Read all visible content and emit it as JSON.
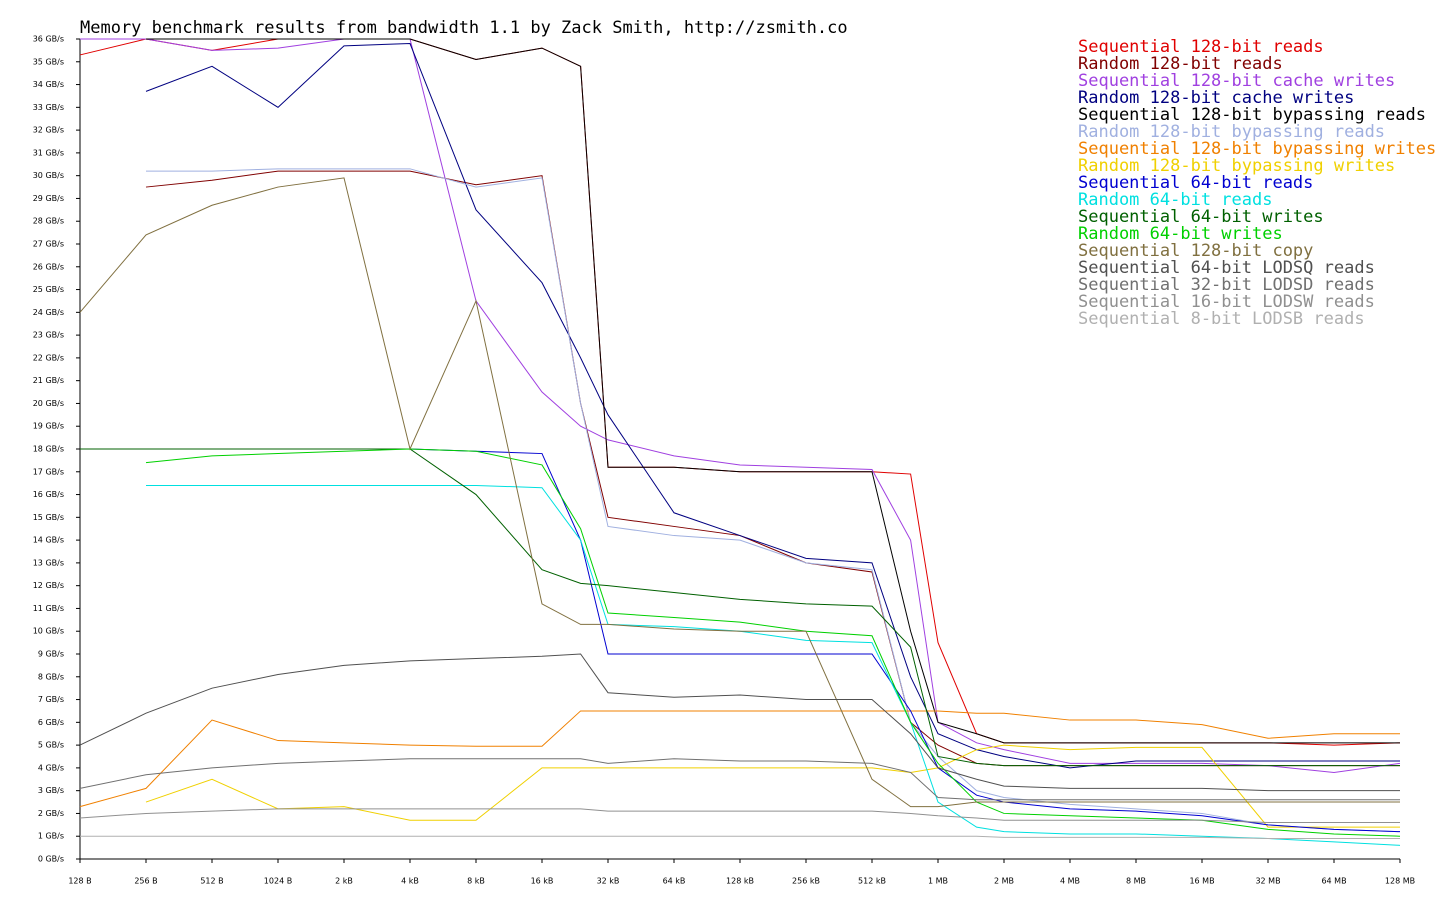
{
  "chart_data": {
    "type": "line",
    "title": "Memory benchmark results from bandwidth 1.1 by Zack Smith, http://zsmith.co",
    "xscale": "log",
    "x": [
      128,
      256,
      512,
      1024,
      2048,
      4096,
      8192,
      16384,
      24576,
      32768,
      65536,
      131072,
      262144,
      524288,
      786432,
      1048576,
      1572864,
      2097152,
      4194304,
      8388608,
      16777216,
      33554432,
      67108864,
      134217728
    ],
    "xlim": [
      128,
      134217728
    ],
    "xticks": [
      {
        "value": 128,
        "label": "128 B"
      },
      {
        "value": 256,
        "label": "256 B"
      },
      {
        "value": 512,
        "label": "512 B"
      },
      {
        "value": 1024,
        "label": "1024 B"
      },
      {
        "value": 2048,
        "label": "2 kB"
      },
      {
        "value": 4096,
        "label": "4 kB"
      },
      {
        "value": 8192,
        "label": "8 kB"
      },
      {
        "value": 16384,
        "label": "16 kB"
      },
      {
        "value": 32768,
        "label": "32 kB"
      },
      {
        "value": 65536,
        "label": "64 kB"
      },
      {
        "value": 131072,
        "label": "128 kB"
      },
      {
        "value": 262144,
        "label": "256 kB"
      },
      {
        "value": 524288,
        "label": "512 kB"
      },
      {
        "value": 1048576,
        "label": "1 MB"
      },
      {
        "value": 2097152,
        "label": "2 MB"
      },
      {
        "value": 4194304,
        "label": "4 MB"
      },
      {
        "value": 8388608,
        "label": "8 MB"
      },
      {
        "value": 16777216,
        "label": "16 MB"
      },
      {
        "value": 33554432,
        "label": "32 MB"
      },
      {
        "value": 67108864,
        "label": "64 MB"
      },
      {
        "value": 134217728,
        "label": "128 MB"
      }
    ],
    "ylim": [
      0,
      36
    ],
    "yticks": [
      {
        "value": 0,
        "label": "0 GB/s"
      },
      {
        "value": 1,
        "label": "1 GB/s"
      },
      {
        "value": 2,
        "label": "2 GB/s"
      },
      {
        "value": 3,
        "label": "3 GB/s"
      },
      {
        "value": 4,
        "label": "4 GB/s"
      },
      {
        "value": 5,
        "label": "5 GB/s"
      },
      {
        "value": 6,
        "label": "6 GB/s"
      },
      {
        "value": 7,
        "label": "7 GB/s"
      },
      {
        "value": 8,
        "label": "8 GB/s"
      },
      {
        "value": 9,
        "label": "9 GB/s"
      },
      {
        "value": 10,
        "label": "10 GB/s"
      },
      {
        "value": 11,
        "label": "11 GB/s"
      },
      {
        "value": 12,
        "label": "12 GB/s"
      },
      {
        "value": 13,
        "label": "13 GB/s"
      },
      {
        "value": 14,
        "label": "14 GB/s"
      },
      {
        "value": 15,
        "label": "15 GB/s"
      },
      {
        "value": 16,
        "label": "16 GB/s"
      },
      {
        "value": 17,
        "label": "17 GB/s"
      },
      {
        "value": 18,
        "label": "18 GB/s"
      },
      {
        "value": 19,
        "label": "19 GB/s"
      },
      {
        "value": 20,
        "label": "20 GB/s"
      },
      {
        "value": 21,
        "label": "21 GB/s"
      },
      {
        "value": 22,
        "label": "22 GB/s"
      },
      {
        "value": 23,
        "label": "23 GB/s"
      },
      {
        "value": 24,
        "label": "24 GB/s"
      },
      {
        "value": 25,
        "label": "25 GB/s"
      },
      {
        "value": 26,
        "label": "26 GB/s"
      },
      {
        "value": 27,
        "label": "27 GB/s"
      },
      {
        "value": 28,
        "label": "28 GB/s"
      },
      {
        "value": 29,
        "label": "29 GB/s"
      },
      {
        "value": 30,
        "label": "30 GB/s"
      },
      {
        "value": 31,
        "label": "31 GB/s"
      },
      {
        "value": 32,
        "label": "32 GB/s"
      },
      {
        "value": 33,
        "label": "33 GB/s"
      },
      {
        "value": 34,
        "label": "34 GB/s"
      },
      {
        "value": 35,
        "label": "35 GB/s"
      },
      {
        "value": 36,
        "label": "36 GB/s"
      }
    ],
    "legend": "upper-right",
    "series": [
      {
        "name": "Sequential 128-bit reads",
        "color": "#e00000",
        "values": [
          35.3,
          36,
          35.5,
          36,
          36,
          36,
          35.1,
          35.6,
          34.8,
          17.2,
          17.2,
          17.0,
          17.0,
          17.0,
          16.9,
          9.5,
          5.5,
          5.1,
          5.1,
          5.1,
          5.1,
          5.1,
          5.0,
          5.1
        ]
      },
      {
        "name": "Random 128-bit reads",
        "color": "#800000",
        "values": [
          null,
          29.5,
          29.8,
          30.2,
          30.2,
          30.2,
          29.6,
          30.0,
          20,
          15,
          14.6,
          14.2,
          13.0,
          12.6,
          6,
          5,
          4.2,
          4.1,
          4.1,
          4.1,
          4.1,
          4.1,
          4.1,
          4.1
        ]
      },
      {
        "name": "Sequential 128-bit cache writes",
        "color": "#a040e0",
        "values": [
          36,
          36,
          35.5,
          35.6,
          36,
          36,
          24.5,
          20.5,
          19,
          18.4,
          17.7,
          17.3,
          17.2,
          17.1,
          14,
          6,
          5.1,
          4.8,
          4.2,
          4.2,
          4.2,
          4.1,
          3.8,
          4.2
        ]
      },
      {
        "name": "Random 128-bit cache writes",
        "color": "#000080",
        "values": [
          null,
          33.7,
          34.8,
          33,
          35.7,
          35.8,
          28.5,
          25.3,
          22,
          19.5,
          15.2,
          14.2,
          13.2,
          13.0,
          8,
          5.5,
          4.8,
          4.5,
          4.0,
          4.3,
          4.3,
          4.3,
          4.3,
          4.3
        ]
      },
      {
        "name": "Sequential 128-bit bypassing reads",
        "color": "#000000",
        "values": [
          null,
          36,
          36,
          36,
          36,
          36,
          35.1,
          35.6,
          34.8,
          17.2,
          17.2,
          17.0,
          17.0,
          17.0,
          10,
          6,
          5.5,
          5.1,
          5.1,
          5.1,
          5.1,
          5.1,
          5.1,
          5.1
        ]
      },
      {
        "name": "Random 128-bit bypassing reads",
        "color": "#a0b0e0",
        "values": [
          null,
          30.2,
          30.2,
          30.3,
          30.3,
          30.3,
          29.5,
          29.9,
          20,
          14.6,
          14.2,
          14.0,
          13.0,
          12.7,
          6,
          4.5,
          3.0,
          2.7,
          2.4,
          2.2,
          2.0,
          1.5,
          1.3,
          1.2
        ]
      },
      {
        "name": "Sequential 128-bit bypassing writes",
        "color": "#f08000",
        "values": [
          2.3,
          3.1,
          6.1,
          5.2,
          5.1,
          5.0,
          4.95,
          4.95,
          6.5,
          6.5,
          6.5,
          6.5,
          6.5,
          6.5,
          6.5,
          6.5,
          6.4,
          6.4,
          6.1,
          6.1,
          5.9,
          5.3,
          5.5,
          5.5
        ]
      },
      {
        "name": "Random 128-bit bypassing writes",
        "color": "#f0d000",
        "values": [
          null,
          2.5,
          3.5,
          2.2,
          2.3,
          1.7,
          1.7,
          4.0,
          4.0,
          4.0,
          4.0,
          4.0,
          4.0,
          4.0,
          3.8,
          4.0,
          4.8,
          5.0,
          4.8,
          4.9,
          4.9,
          1.4,
          1.4,
          1.4
        ]
      },
      {
        "name": "Sequential 64-bit reads",
        "color": "#0000d0",
        "values": [
          18,
          18,
          18,
          18,
          18,
          18,
          17.9,
          17.8,
          14,
          9.0,
          9.0,
          9.0,
          9.0,
          9.0,
          6.5,
          4,
          2.8,
          2.5,
          2.2,
          2.1,
          1.9,
          1.5,
          1.3,
          1.2
        ]
      },
      {
        "name": "Random 64-bit reads",
        "color": "#00e0e0",
        "values": [
          null,
          16.4,
          16.4,
          16.4,
          16.4,
          16.4,
          16.4,
          16.3,
          14,
          10.3,
          10.2,
          10.0,
          9.6,
          9.5,
          6,
          2.5,
          1.4,
          1.2,
          1.1,
          1.1,
          1.0,
          0.9,
          0.75,
          0.6
        ]
      },
      {
        "name": "Sequential 64-bit writes",
        "color": "#006000",
        "values": [
          18,
          18,
          18,
          18,
          18,
          18,
          16.0,
          12.7,
          12.1,
          12.0,
          11.7,
          11.4,
          11.2,
          11.1,
          9.3,
          4.5,
          4.2,
          4.1,
          4.1,
          4.1,
          4.1,
          4.1,
          4.1,
          4.1
        ]
      },
      {
        "name": "Random 64-bit writes",
        "color": "#00d000",
        "values": [
          null,
          17.4,
          17.7,
          17.8,
          17.9,
          18,
          17.9,
          17.3,
          14.5,
          10.8,
          10.6,
          10.4,
          10.0,
          9.8,
          6,
          4.2,
          2.5,
          2.0,
          1.9,
          1.8,
          1.7,
          1.3,
          1.1,
          1.0
        ]
      },
      {
        "name": "Sequential 128-bit copy",
        "color": "#807040",
        "values": [
          24,
          27.4,
          28.7,
          29.5,
          29.9,
          18,
          24.5,
          11.2,
          10.3,
          10.3,
          10.1,
          10.0,
          10.0,
          3.5,
          2.3,
          2.3,
          2.5,
          2.5,
          2.5,
          2.5,
          2.5,
          2.5,
          2.5,
          2.5
        ]
      },
      {
        "name": "Sequential 64-bit LODSQ reads",
        "color": "#505050",
        "values": [
          5.0,
          6.4,
          7.5,
          8.1,
          8.5,
          8.7,
          8.8,
          8.9,
          9.0,
          7.3,
          7.1,
          7.2,
          7.0,
          7.0,
          5.5,
          4.0,
          3.5,
          3.2,
          3.1,
          3.1,
          3.1,
          3.0,
          3.0,
          3.0
        ]
      },
      {
        "name": "Sequential 32-bit LODSD reads",
        "color": "#707070",
        "values": [
          3.1,
          3.7,
          4.0,
          4.2,
          4.3,
          4.4,
          4.4,
          4.4,
          4.4,
          4.2,
          4.4,
          4.3,
          4.3,
          4.2,
          3.8,
          2.7,
          2.6,
          2.6,
          2.6,
          2.6,
          2.6,
          2.6,
          2.6,
          2.6
        ]
      },
      {
        "name": "Sequential 16-bit LODSW reads",
        "color": "#909090",
        "values": [
          1.8,
          2.0,
          2.1,
          2.2,
          2.2,
          2.2,
          2.2,
          2.2,
          2.2,
          2.1,
          2.1,
          2.1,
          2.1,
          2.1,
          2.0,
          1.9,
          1.8,
          1.7,
          1.7,
          1.7,
          1.7,
          1.6,
          1.6,
          1.6
        ]
      },
      {
        "name": "Sequential 8-bit LODSB reads",
        "color": "#b0b0b0",
        "values": [
          1.0,
          1.0,
          1.0,
          1.0,
          1.0,
          1.0,
          1.0,
          1.0,
          1.0,
          1.0,
          1.0,
          1.0,
          1.0,
          1.0,
          1.0,
          1.0,
          1.0,
          0.95,
          0.95,
          0.95,
          0.95,
          0.9,
          0.9,
          0.9
        ]
      }
    ]
  }
}
